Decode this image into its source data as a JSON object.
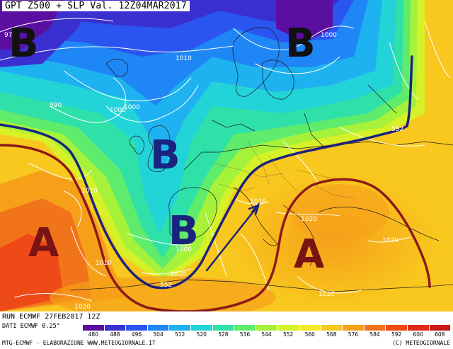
{
  "header": {
    "title": "GPT Z500 + SLP Val. 12Z04MAR2017"
  },
  "pressure_systems": [
    {
      "label": "B",
      "kind": "low"
    },
    {
      "label": "B",
      "kind": "low"
    },
    {
      "label": "B",
      "kind": "low"
    },
    {
      "label": "B",
      "kind": "low"
    },
    {
      "label": "A",
      "kind": "high"
    },
    {
      "label": "A",
      "kind": "high"
    }
  ],
  "isobar_labels": [
    "990",
    "1000",
    "1000",
    "1000",
    "1010",
    "1010",
    "1010",
    "1010",
    "1010",
    "1010",
    "1020",
    "1020",
    "1020",
    "1020",
    "1000"
  ],
  "contour_labels": [
    "552",
    "552"
  ],
  "partial_label": "97",
  "colorbar": {
    "ticks": [
      "480",
      "488",
      "496",
      "504",
      "512",
      "520",
      "528",
      "536",
      "544",
      "552",
      "560",
      "568",
      "576",
      "584",
      "592",
      "600",
      "608"
    ],
    "colors": [
      "#5a0fa0",
      "#3a2fcf",
      "#2a55f0",
      "#1f86f5",
      "#1fb2f0",
      "#22d4d8",
      "#2fe0a8",
      "#5fec6c",
      "#a6f23a",
      "#d6f128",
      "#f5e82a",
      "#f8c81e",
      "#f6a01a",
      "#f2741a",
      "#ee4a18",
      "#e02a18",
      "#c81818"
    ]
  },
  "footer": {
    "run": "RUN ECMWF 27FEB2017 12Z",
    "data": "DATI ECMWF 0.25°",
    "credits": "MTG-ECMWF - ELABORAZIONE WWW.METEOGIORNALE.IT",
    "copyright": "(C) METEOGIORNALE"
  }
}
